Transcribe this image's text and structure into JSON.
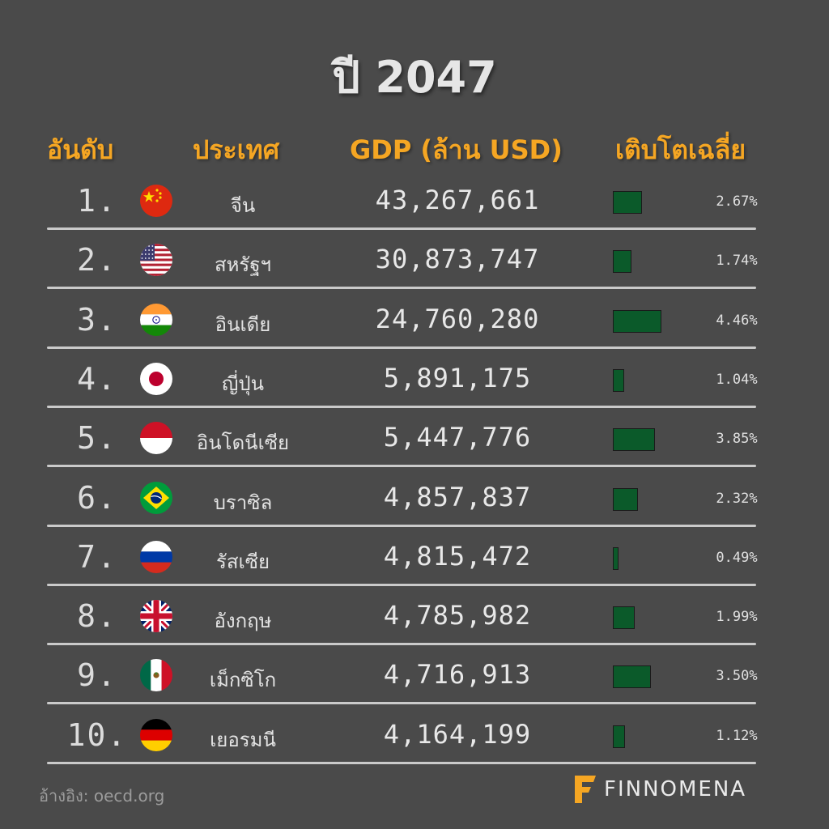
{
  "title": "ปี 2047",
  "headers": {
    "rank": "อันดับ",
    "country": "ประเทศ",
    "gdp": "GDP (ล้าน USD)",
    "growth": "เติบโตเฉลี่ย"
  },
  "colors": {
    "background": "#4a4a4a",
    "header_accent": "#f5a623",
    "bar_fill": "#0b5a2a"
  },
  "chart_data": {
    "type": "table",
    "title": "ปี 2047",
    "columns": [
      "อันดับ",
      "ประเทศ",
      "GDP (ล้าน USD)",
      "เติบโตเฉลี่ย"
    ],
    "rows": [
      {
        "rank": "1.",
        "flag": "china-flag-icon",
        "country": "จีน",
        "gdp": "43,267,661",
        "growth_label": "2.67%",
        "growth": 2.67
      },
      {
        "rank": "2.",
        "flag": "usa-flag-icon",
        "country": "สหรัฐฯ",
        "gdp": "30,873,747",
        "growth_label": "1.74%",
        "growth": 1.74
      },
      {
        "rank": "3.",
        "flag": "india-flag-icon",
        "country": "อินเดีย",
        "gdp": "24,760,280",
        "growth_label": "4.46%",
        "growth": 4.46
      },
      {
        "rank": "4.",
        "flag": "japan-flag-icon",
        "country": "ญี่ปุ่น",
        "gdp": "5,891,175",
        "growth_label": "1.04%",
        "growth": 1.04
      },
      {
        "rank": "5.",
        "flag": "indonesia-flag-icon",
        "country": "อินโดนีเซีย",
        "gdp": "5,447,776",
        "growth_label": "3.85%",
        "growth": 3.85
      },
      {
        "rank": "6.",
        "flag": "brazil-flag-icon",
        "country": "บราซิล",
        "gdp": "4,857,837",
        "growth_label": "2.32%",
        "growth": 2.32
      },
      {
        "rank": "7.",
        "flag": "russia-flag-icon",
        "country": "รัสเซีย",
        "gdp": "4,815,472",
        "growth_label": "0.49%",
        "growth": 0.49
      },
      {
        "rank": "8.",
        "flag": "uk-flag-icon",
        "country": "อังกฤษ",
        "gdp": "4,785,982",
        "growth_label": "1.99%",
        "growth": 1.99
      },
      {
        "rank": "9.",
        "flag": "mexico-flag-icon",
        "country": "เม็กซิโก",
        "gdp": "4,716,913",
        "growth_label": "3.50%",
        "growth": 3.5
      },
      {
        "rank": "10.",
        "flag": "germany-flag-icon",
        "country": "เยอรมนี",
        "gdp": "4,164,199",
        "growth_label": "1.12%",
        "growth": 1.12
      }
    ]
  },
  "footer": {
    "source": "อ้างอิง: oecd.org",
    "brand": "FINNOMENA"
  }
}
